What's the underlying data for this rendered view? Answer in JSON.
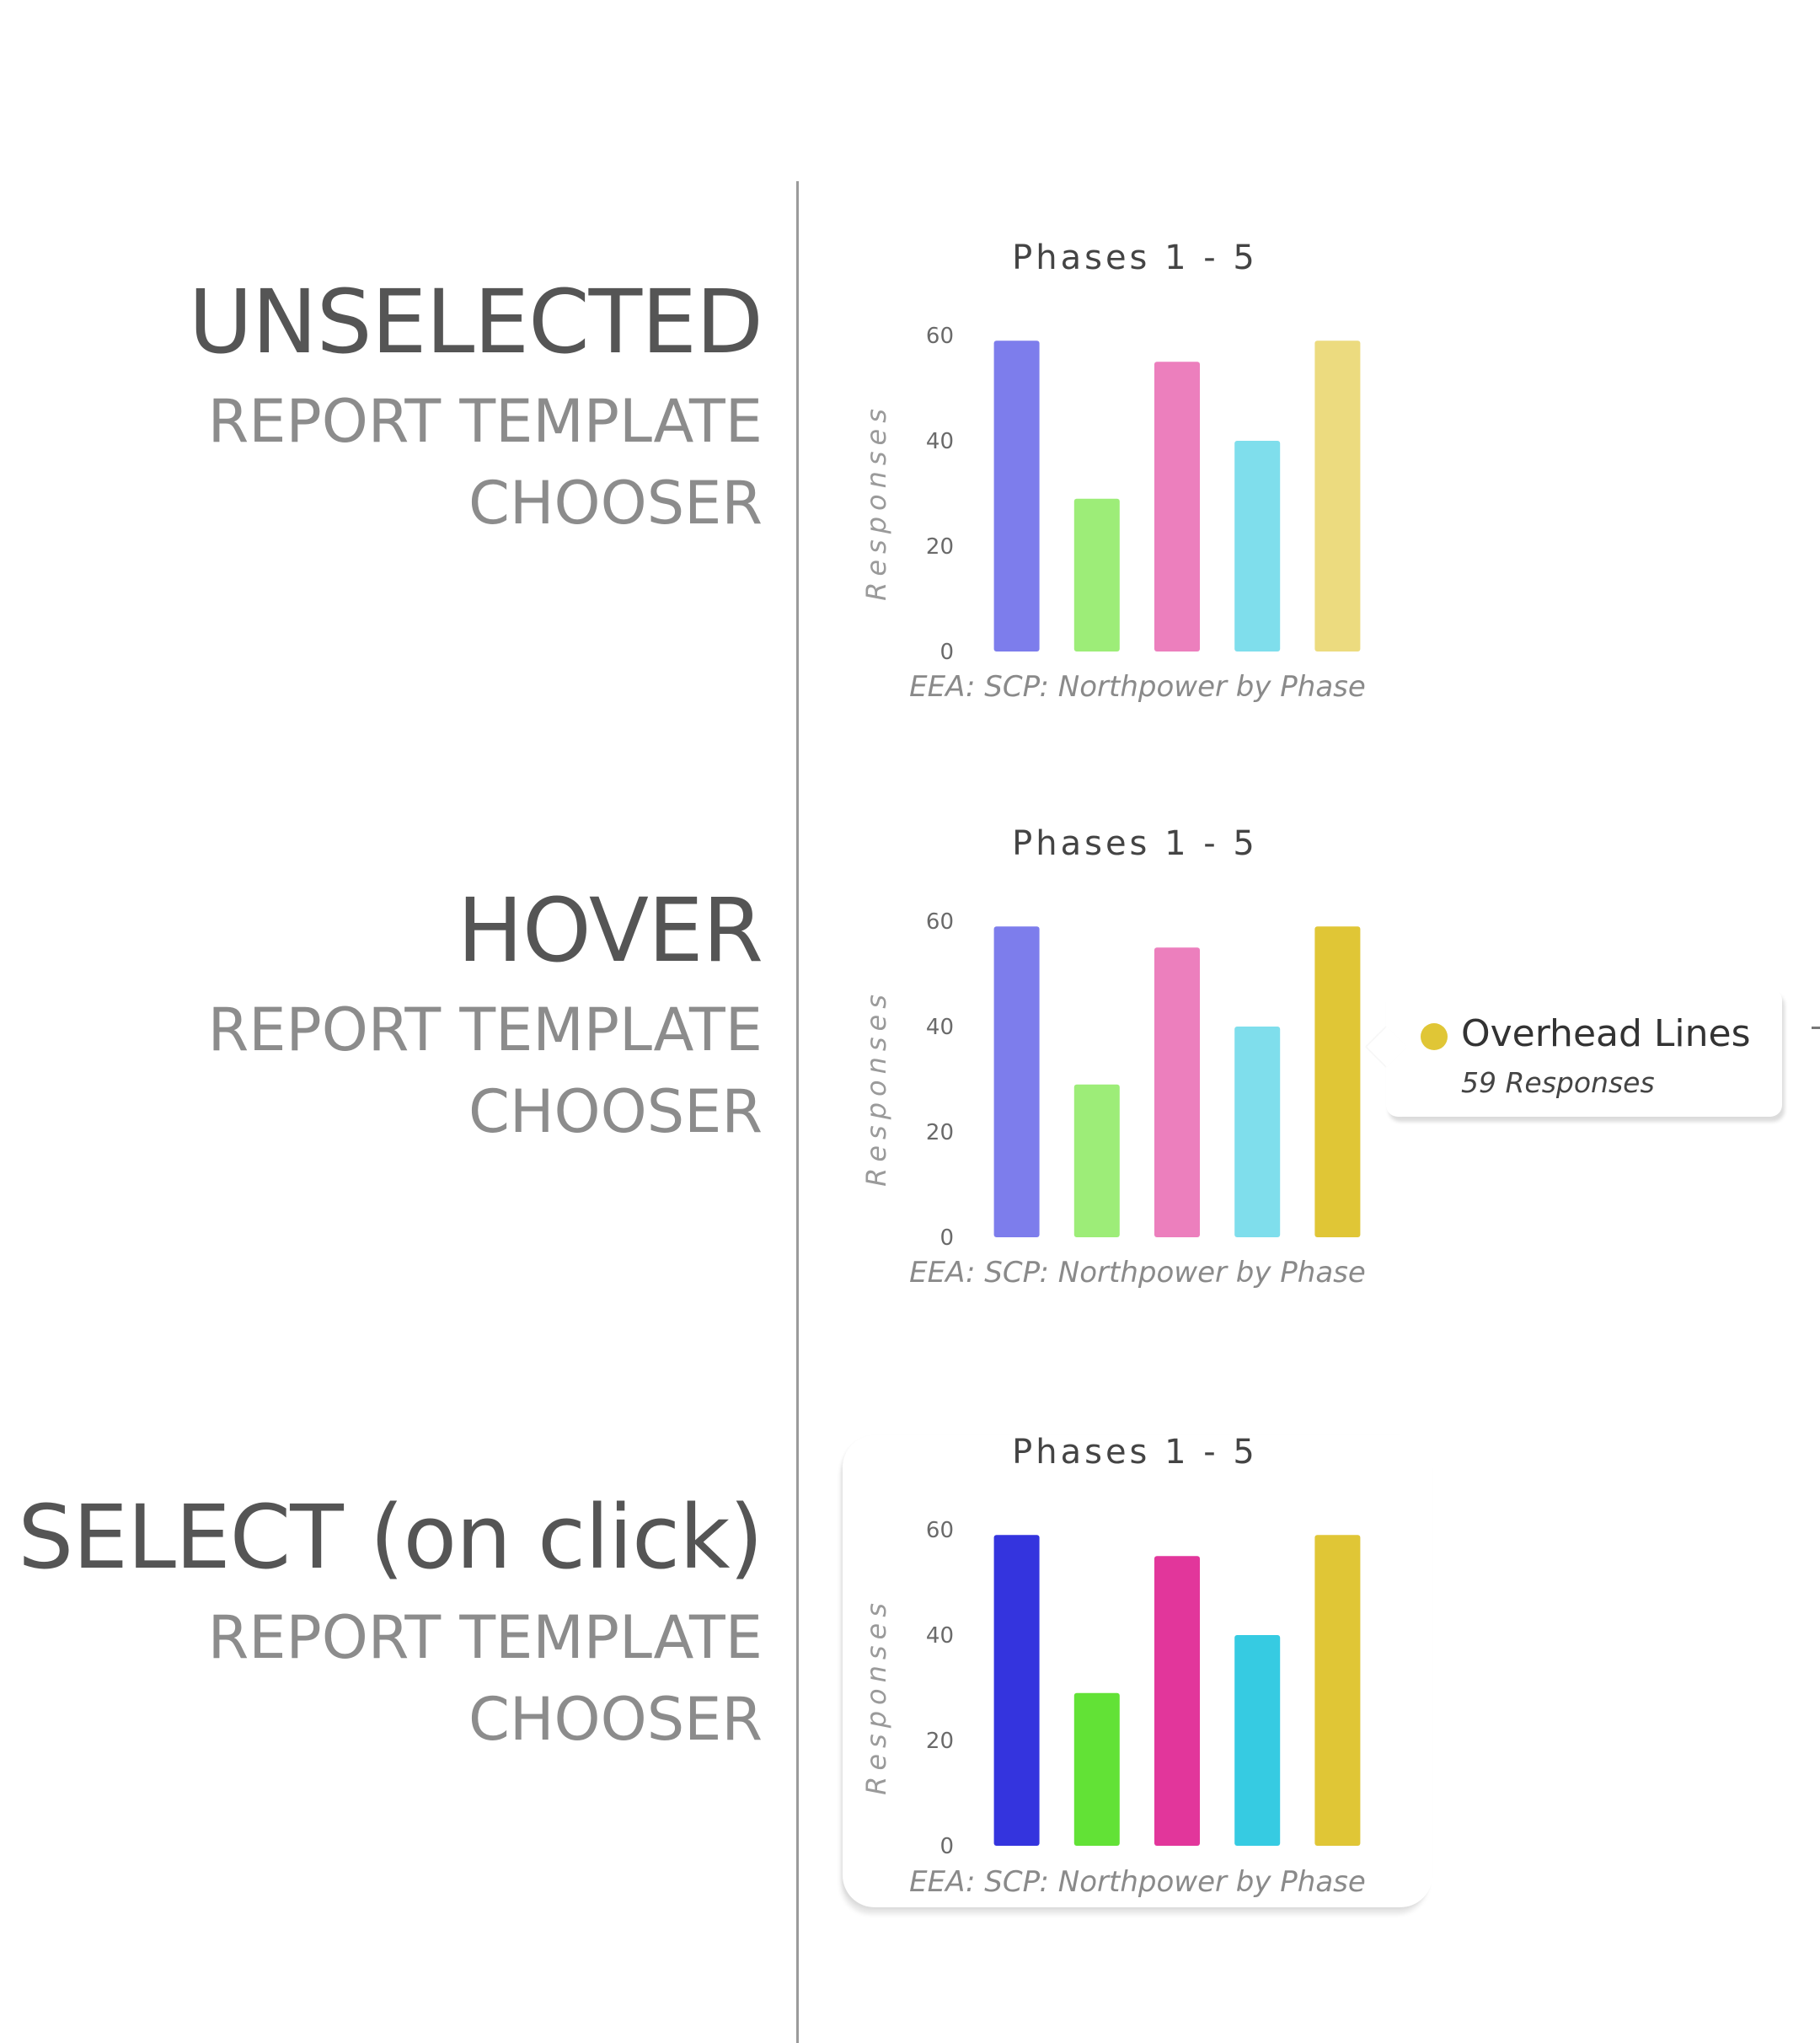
{
  "states": [
    {
      "title": "UNSELECTED",
      "subtitle_line1": "REPORT TEMPLATE",
      "subtitle_line2": "CHOOSER"
    },
    {
      "title": "HOVER",
      "subtitle_line1": "REPORT TEMPLATE",
      "subtitle_line2": "CHOOSER"
    },
    {
      "title": "SELECT (on click)",
      "subtitle_line1": "REPORT TEMPLATE",
      "subtitle_line2": "CHOOSER"
    }
  ],
  "chart_data": [
    {
      "type": "bar",
      "title": "Phases 1 - 5",
      "ylabel": "Responses",
      "caption": "EEA: SCP: Northpower by Phase",
      "yticks": [
        "0",
        "20",
        "40",
        "60"
      ],
      "ylim": [
        0,
        60
      ],
      "grid": false,
      "values": [
        59,
        29,
        55,
        40,
        59
      ],
      "colors": [
        "#7d7dec",
        "#9ded78",
        "#ec7fbd",
        "#7fdeec",
        "#ecdb7f"
      ]
    },
    {
      "type": "bar",
      "title": "Phases 1 - 5",
      "ylabel": "Responses",
      "caption": "EEA: SCP: Northpower by Phase",
      "yticks": [
        "0",
        "20",
        "40",
        "60"
      ],
      "ylim": [
        0,
        60
      ],
      "grid": false,
      "values": [
        59,
        29,
        55,
        40,
        59
      ],
      "colors": [
        "#7d7dec",
        "#9ded78",
        "#ec7fbd",
        "#7fdeec",
        "#e0c636"
      ]
    },
    {
      "type": "bar",
      "title": "Phases 1 - 5",
      "ylabel": "Responses",
      "caption": "EEA: SCP: Northpower by Phase",
      "yticks": [
        "0",
        "20",
        "40",
        "60"
      ],
      "ylim": [
        0,
        60
      ],
      "grid": false,
      "values": [
        59,
        29,
        55,
        40,
        59
      ],
      "colors": [
        "#3434de",
        "#62e236",
        "#e2369b",
        "#36cbe2",
        "#e0c636"
      ]
    }
  ],
  "tooltip": {
    "label": "Overhead Lines",
    "value": "59 Responses",
    "dot_color": "#e0c636"
  }
}
